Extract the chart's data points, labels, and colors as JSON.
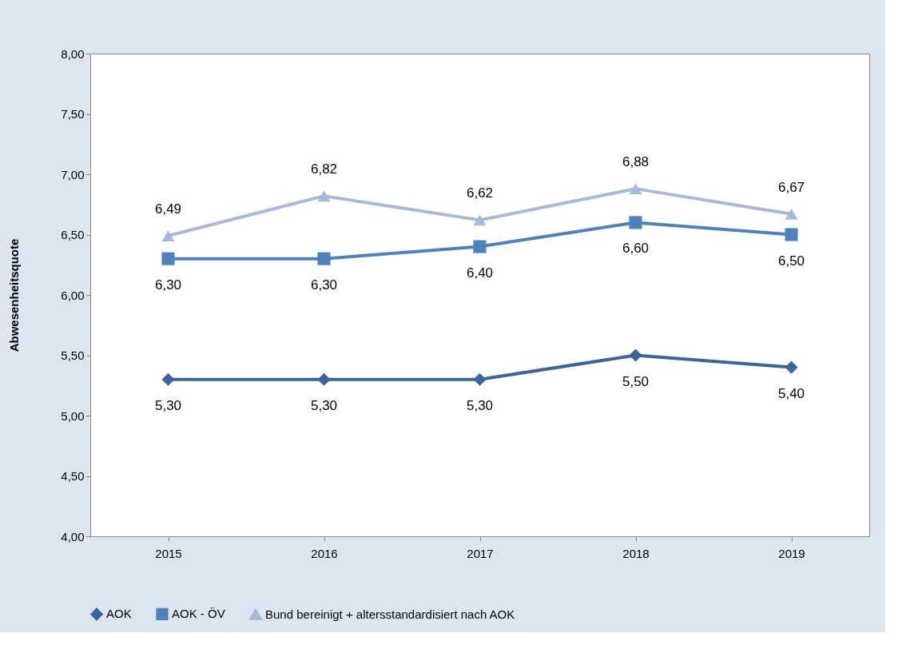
{
  "chart_data": {
    "type": "line",
    "ylabel": "Abwesenheitsquote",
    "categories": [
      "2015",
      "2016",
      "2017",
      "2018",
      "2019"
    ],
    "ylim": [
      4,
      8
    ],
    "yticks": [
      {
        "value": 4,
        "label": "4,00"
      },
      {
        "value": 4.5,
        "label": "4,50"
      },
      {
        "value": 5,
        "label": "5,00"
      },
      {
        "value": 5.5,
        "label": "5,50"
      },
      {
        "value": 6,
        "label": "6,00"
      },
      {
        "value": 6.5,
        "label": "6,50"
      },
      {
        "value": 7,
        "label": "7,00"
      },
      {
        "value": 7.5,
        "label": "7,50"
      },
      {
        "value": 8,
        "label": "8,00"
      }
    ],
    "grid": false,
    "legend": "bottom",
    "line_style": "solid",
    "series": [
      {
        "name": "AOK",
        "color": "#3d6499",
        "marker": "diamond",
        "values": [
          5.3,
          5.3,
          5.3,
          5.5,
          5.4
        ],
        "value_labels": [
          "5,30",
          "5,30",
          "5,30",
          "5,50",
          "5,40"
        ]
      },
      {
        "name": "AOK - ÖV",
        "color": "#4f81bd",
        "marker": "square",
        "values": [
          6.3,
          6.3,
          6.4,
          6.6,
          6.5
        ],
        "value_labels": [
          "6,30",
          "6,30",
          "6,40",
          "6,60",
          "6,50"
        ]
      },
      {
        "name": "Bund bereinigt + altersstandardisiert nach AOK",
        "color": "#a7b9d9",
        "marker": "triangle",
        "values": [
          6.49,
          6.82,
          6.62,
          6.88,
          6.67
        ],
        "value_labels": [
          "6,49",
          "6,82",
          "6,62",
          "6,88",
          "6,67"
        ]
      }
    ]
  }
}
